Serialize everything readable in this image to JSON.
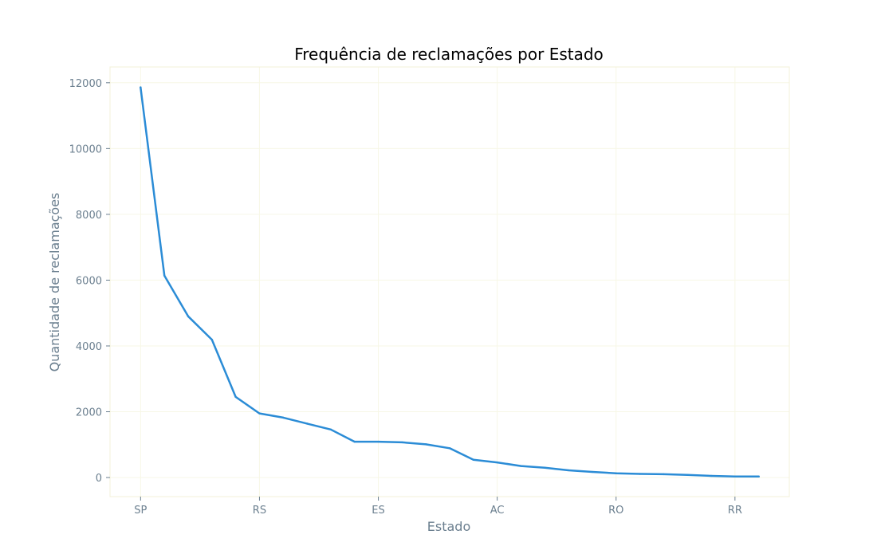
{
  "chart_data": {
    "type": "line",
    "title": "Frequência de reclamações por Estado",
    "xlabel": "Estado",
    "ylabel": "Quantidade de reclamações",
    "tick_labels": [
      "SP",
      "RS",
      "ES",
      "AC",
      "RO",
      "RR"
    ],
    "tick_indices": [
      0,
      5,
      10,
      15,
      20,
      25
    ],
    "ylim": [
      -580,
      12480
    ],
    "y_ticks": [
      0,
      2000,
      4000,
      6000,
      8000,
      10000,
      12000
    ],
    "grid": true,
    "series": [
      {
        "values": [
          11860,
          6140,
          4900,
          4190,
          2450,
          1950,
          1820,
          1640,
          1460,
          1090,
          1090,
          1070,
          1010,
          890,
          540,
          460,
          350,
          300,
          220,
          170,
          130,
          110,
          100,
          80,
          50,
          30,
          30
        ]
      }
    ],
    "colors": {
      "line": "#2b8cd6",
      "grid": "#f7f7e6",
      "frame": "#f3f0d8",
      "ticks": "#6b7f8f"
    }
  }
}
